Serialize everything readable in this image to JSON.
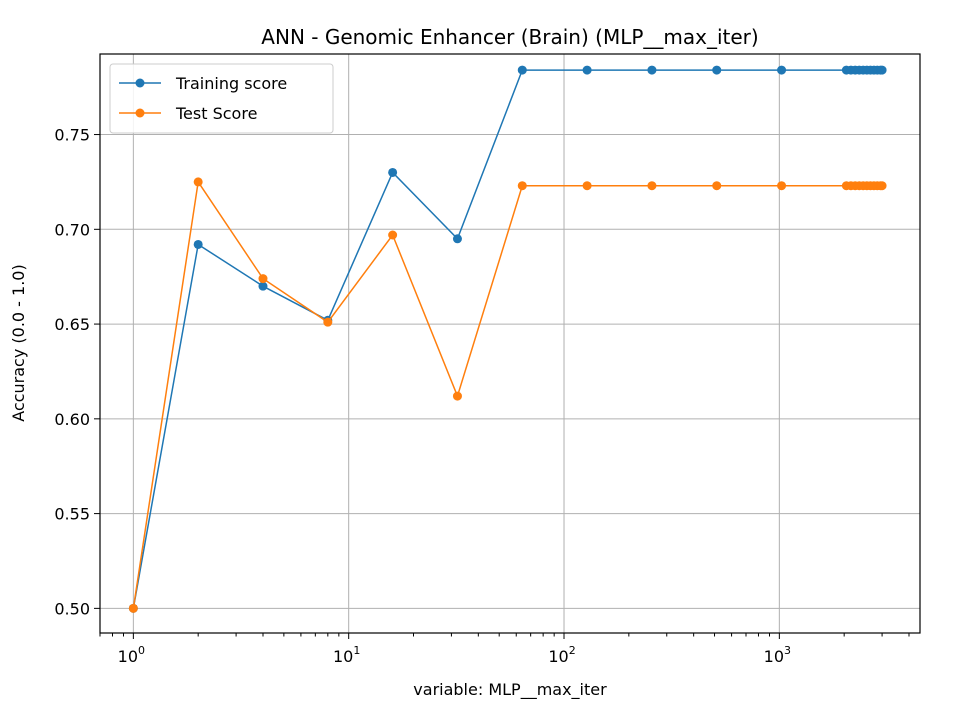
{
  "chart_data": {
    "type": "line",
    "title": "ANN - Genomic Enhancer (Brain) (MLP__max_iter)",
    "xlabel": "variable: MLP__max_iter",
    "ylabel": "Accuracy (0.0 - 1.0)",
    "x_scale": "log",
    "xlim": [
      0.7,
      4500
    ],
    "ylim": [
      0.487,
      0.7925
    ],
    "grid": true,
    "legend_position": "top-left",
    "x_ticks": [
      {
        "value": 1,
        "base": "10",
        "exp": "0"
      },
      {
        "value": 10,
        "base": "10",
        "exp": "1"
      },
      {
        "value": 100,
        "base": "10",
        "exp": "2"
      },
      {
        "value": 1000,
        "base": "10",
        "exp": "3"
      }
    ],
    "y_ticks": [
      "0.50",
      "0.55",
      "0.60",
      "0.65",
      "0.70",
      "0.75"
    ],
    "x": [
      1,
      2,
      4,
      8,
      16,
      32,
      64,
      128,
      256,
      512,
      1024,
      2048,
      2150,
      2250,
      2350,
      2450,
      2550,
      2650,
      2750,
      2850,
      2950,
      3000
    ],
    "series": [
      {
        "name": "Training score",
        "color": "#1f77b4",
        "values": [
          0.5,
          0.692,
          0.67,
          0.652,
          0.73,
          0.695,
          0.784,
          0.784,
          0.784,
          0.784,
          0.784,
          0.784,
          0.784,
          0.784,
          0.784,
          0.784,
          0.784,
          0.784,
          0.784,
          0.784,
          0.784,
          0.784
        ]
      },
      {
        "name": "Test Score",
        "color": "#ff7f0e",
        "values": [
          0.5,
          0.725,
          0.674,
          0.651,
          0.697,
          0.612,
          0.723,
          0.723,
          0.723,
          0.723,
          0.723,
          0.723,
          0.723,
          0.723,
          0.723,
          0.723,
          0.723,
          0.723,
          0.723,
          0.723,
          0.723,
          0.723
        ]
      }
    ]
  }
}
